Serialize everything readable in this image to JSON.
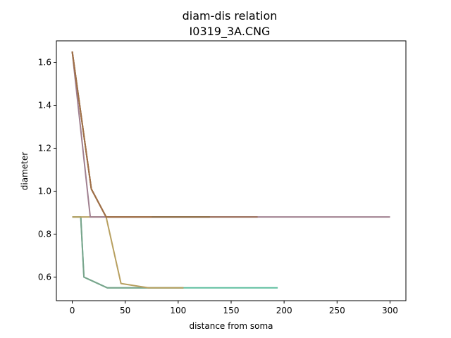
{
  "chart_data": {
    "type": "line",
    "title_line1": "diam-dis relation",
    "title_line2": "I0319_3A.CNG",
    "xlabel": "distance from soma",
    "ylabel": "diameter",
    "xlim": [
      -15,
      315
    ],
    "ylim": [
      0.49,
      1.7
    ],
    "xticks": [
      0,
      50,
      100,
      150,
      200,
      250,
      300
    ],
    "yticks": [
      0.6,
      0.8,
      1.0,
      1.2,
      1.4,
      1.6
    ],
    "ytick_labels": [
      "0.6",
      "0.8",
      "1.0",
      "1.2",
      "1.4",
      "1.6"
    ],
    "grid": false,
    "series": [
      {
        "color": "#5fbfa0",
        "x": [
          0,
          8,
          11,
          33,
          60,
          106,
          194
        ],
        "y": [
          0.88,
          0.88,
          0.6,
          0.55,
          0.55,
          0.55,
          0.55
        ]
      },
      {
        "color": "#7aa58c",
        "x": [
          0,
          8,
          11,
          33,
          70,
          105
        ],
        "y": [
          0.88,
          0.88,
          0.6,
          0.55,
          0.55,
          0.55
        ]
      },
      {
        "color": "#b8a060",
        "x": [
          0,
          32,
          46,
          72,
          105
        ],
        "y": [
          0.88,
          0.88,
          0.57,
          0.55,
          0.55
        ]
      },
      {
        "color": "#a08090",
        "x": [
          0,
          17,
          300
        ],
        "y": [
          1.65,
          0.88,
          0.88
        ]
      },
      {
        "color": "#9a6e58",
        "x": [
          0,
          18,
          32,
          175
        ],
        "y": [
          1.65,
          1.01,
          0.88,
          0.88
        ]
      },
      {
        "color": "#8b6a42",
        "x": [
          0,
          18,
          32,
          130
        ],
        "y": [
          1.65,
          1.01,
          0.88,
          0.88
        ]
      },
      {
        "color": "#a07048",
        "x": [
          0,
          18,
          32,
          75
        ],
        "y": [
          1.65,
          1.01,
          0.88,
          0.88
        ]
      }
    ]
  }
}
